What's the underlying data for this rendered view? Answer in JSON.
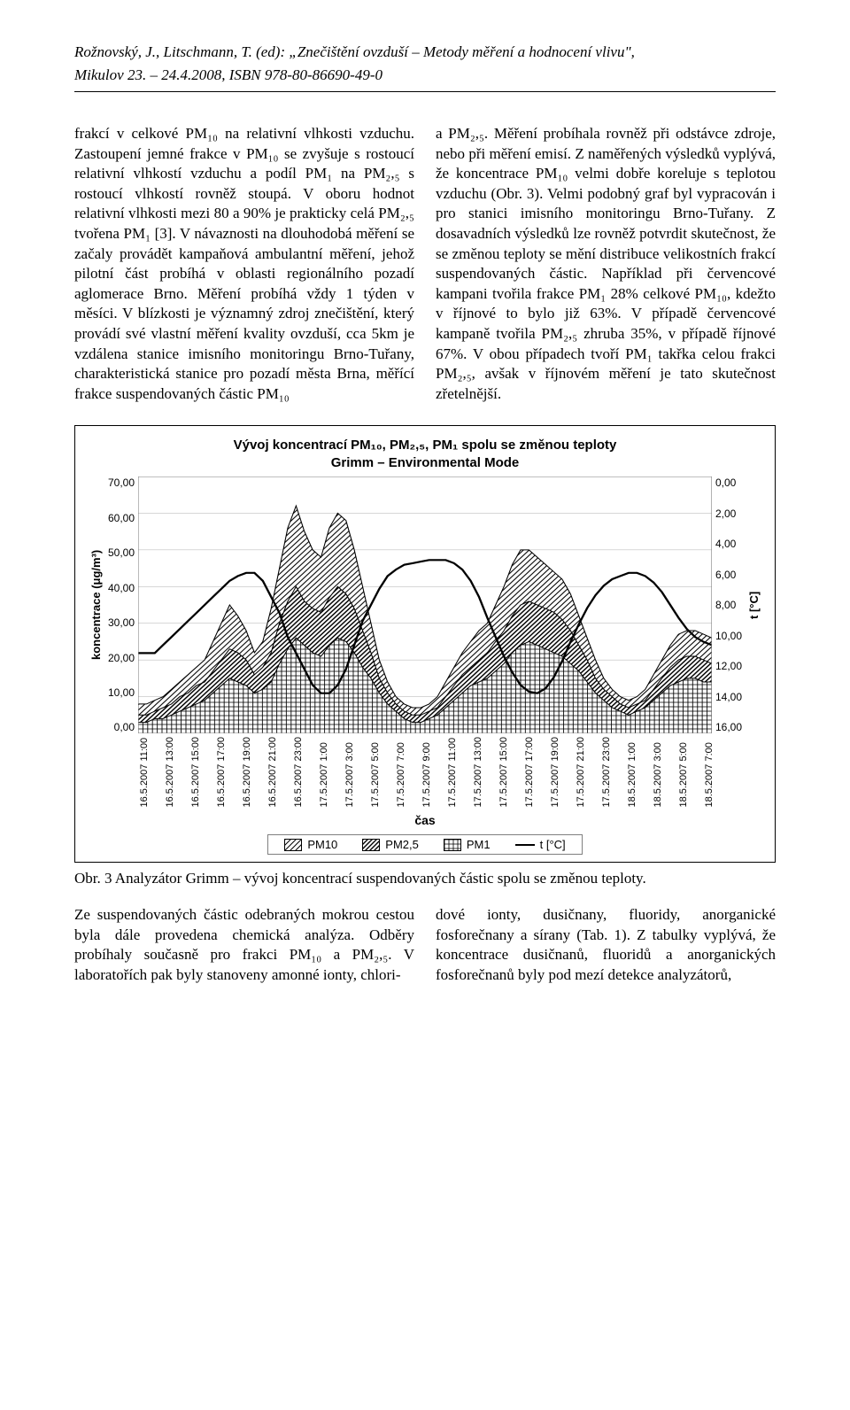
{
  "header": {
    "line1": "Rožnovský, J., Litschmann, T. (ed): „Znečištění ovzduší – Metody měření a hodnocení vlivu\",",
    "line2": "Mikulov 23. – 24.4.2008, ISBN 978-80-86690-49-0"
  },
  "body_left": "frakcí v celkové PM₁₀ na relativní vlhkosti vzduchu. Zastoupení jemné frakce v PM₁₀ se zvyšuje s rostoucí relativní vlhkostí vzduchu a podíl PM₁ na PM₂,₅ s rostoucí vlhkostí rovněž stoupá. V oboru hodnot relativní vlhkosti mezi 80 a 90% je prakticky celá PM₂,₅ tvořena PM₁ [3]. V návaznosti na dlouhodobá měření se začaly provádět kampaňová ambulantní měření, jehož pilotní část probíhá v oblasti regionálního pozadí aglomerace Brno. Měření probíhá vždy 1 týden v měsíci. V blízkosti je významný zdroj znečištění, který provádí své vlastní měření kvality ovzduší, cca 5km je vzdálena stanice imisního monitoringu Brno-Tuřany, charakteristická stanice pro pozadí města Brna, měřící frakce suspendovaných částic PM₁₀",
  "body_right": "a PM₂,₅. Měření probíhala rovněž při odstávce zdroje, nebo při měření emisí. Z naměřených výsledků vyplývá, že koncentrace PM₁₀ velmi dobře koreluje s teplotou vzduchu (Obr. 3). Velmi podobný graf byl vypracován i pro stanici imisního monitoringu Brno-Tuřany. Z dosavadních výsledků lze rovněž potvrdit skutečnost, že se změnou teploty se mění distribuce velikostních frakcí suspendovaných částic. Například při červencové kampani tvořila frakce PM₁ 28% celkové PM₁₀, kdežto v říjnové to bylo již 63%. V případě červencové kampaně tvořila PM₂,₅ zhruba 35%, v případě říjnové 67%. V obou případech tvoří PM₁ takřka celou frakci PM₂,₅, avšak v říjnovém měření je tato skutečnost zřetelnější.",
  "chart": {
    "title_line1": "Vývoj koncentrací PM₁₀, PM₂,₅, PM₁ spolu se změnou teploty",
    "title_line2": "Grimm – Environmental Mode",
    "y_left_label": "koncentrace (μg/m³)",
    "y_right_label": "t [°C]",
    "x_label": "čas",
    "y_left": {
      "min": 0,
      "max": 70,
      "step": 10,
      "ticks": [
        "70,00",
        "60,00",
        "50,00",
        "40,00",
        "30,00",
        "20,00",
        "10,00",
        "0,00"
      ]
    },
    "y_right": {
      "min": 0,
      "max": 16,
      "step": 2,
      "ticks": [
        "0,00",
        "2,00",
        "4,00",
        "6,00",
        "8,00",
        "10,00",
        "12,00",
        "14,00",
        "16,00"
      ],
      "reversed": true
    },
    "x_ticks": [
      "16.5.2007 11:00",
      "16.5.2007 13:00",
      "16.5.2007 15:00",
      "16.5.2007 17:00",
      "16.5.2007 19:00",
      "16.5.2007 21:00",
      "16.5.2007 23:00",
      "17.5.2007 1:00",
      "17.5.2007 3:00",
      "17.5.2007 5:00",
      "17.5.2007 7:00",
      "17.5.2007 9:00",
      "17.5.2007 11:00",
      "17.5.2007 13:00",
      "17.5.2007 15:00",
      "17.5.2007 17:00",
      "17.5.2007 19:00",
      "17.5.2007 21:00",
      "17.5.2007 23:00",
      "18.5.2007 1:00",
      "18.5.2007 3:00",
      "18.5.2007 5:00",
      "18.5.2007 7:00"
    ],
    "legend": [
      {
        "label": "PM10",
        "swatch": "diag1"
      },
      {
        "label": "PM2,5",
        "swatch": "diag2"
      },
      {
        "label": "PM1",
        "swatch": "grid"
      },
      {
        "label": "t [°C]",
        "swatch": "line"
      }
    ],
    "background_color": "#ffffff",
    "gridline_color": "#bfbfbf",
    "series_border": "#000000",
    "temp_line_color": "#000000",
    "temp_line_width": 2.2,
    "series": {
      "pm10": [
        8,
        8,
        9,
        10,
        12,
        14,
        16,
        18,
        20,
        25,
        30,
        35,
        32,
        28,
        22,
        25,
        34,
        45,
        56,
        62,
        55,
        50,
        48,
        56,
        60,
        58,
        50,
        40,
        30,
        20,
        14,
        10,
        8,
        7,
        7,
        8,
        10,
        14,
        18,
        22,
        25,
        28,
        30,
        35,
        40,
        46,
        50,
        50,
        48,
        46,
        44,
        42,
        38,
        32,
        26,
        20,
        15,
        12,
        10,
        9,
        10,
        12,
        16,
        20,
        24,
        27,
        28,
        28,
        27,
        26
      ],
      "pm25": [
        5,
        5,
        6,
        7,
        8,
        10,
        11,
        13,
        14,
        17,
        20,
        23,
        22,
        20,
        16,
        18,
        22,
        30,
        36,
        40,
        36,
        34,
        33,
        37,
        40,
        38,
        34,
        28,
        22,
        15,
        11,
        8,
        6,
        5,
        5,
        6,
        7,
        10,
        13,
        16,
        18,
        20,
        22,
        25,
        28,
        32,
        35,
        36,
        35,
        34,
        33,
        31,
        28,
        24,
        20,
        15,
        12,
        10,
        8,
        7,
        8,
        9,
        12,
        15,
        18,
        20,
        21,
        21,
        20,
        19
      ],
      "pm1": [
        3,
        3,
        4,
        4,
        5,
        6,
        7,
        8,
        9,
        11,
        13,
        15,
        14,
        13,
        11,
        12,
        14,
        19,
        23,
        26,
        24,
        22,
        21,
        24,
        26,
        25,
        22,
        18,
        15,
        11,
        8,
        6,
        4,
        3,
        3,
        4,
        5,
        7,
        9,
        11,
        13,
        14,
        15,
        17,
        19,
        22,
        24,
        25,
        24,
        23,
        22,
        21,
        19,
        17,
        14,
        11,
        9,
        7,
        6,
        5,
        6,
        7,
        9,
        11,
        13,
        14,
        15,
        15,
        14,
        14
      ],
      "temp": [
        11,
        11,
        11,
        10.5,
        10,
        9.5,
        9,
        8.5,
        8,
        7.5,
        7,
        6.5,
        6.2,
        6,
        6,
        6.5,
        7.5,
        8.5,
        10,
        11,
        12,
        13,
        13.5,
        13.5,
        13,
        12,
        10.5,
        9,
        8,
        7,
        6.2,
        5.8,
        5.5,
        5.4,
        5.3,
        5.2,
        5.2,
        5.2,
        5.4,
        5.8,
        6.5,
        7.5,
        8.8,
        10,
        11.2,
        12.2,
        13,
        13.4,
        13.5,
        13.2,
        12.5,
        11.5,
        10.3,
        9.2,
        8.2,
        7.4,
        6.8,
        6.4,
        6.2,
        6,
        6,
        6.2,
        6.6,
        7.2,
        8,
        8.8,
        9.5,
        10,
        10.3,
        10.5
      ]
    }
  },
  "caption": "Obr. 3 Analyzátor Grimm – vývoj koncentrací suspendovaných částic spolu se změnou teploty.",
  "bottom_left": "Ze suspendovaných částic odebraných mokrou cestou byla dále provedena chemická analýza. Odběry probíhaly současně pro frakci PM₁₀ a PM₂,₅. V laboratořích pak byly stanoveny amonné ionty, chlori-",
  "bottom_right": "dové ionty, dusičnany, fluoridy, anorganické fosforečnany a sírany (Tab. 1). Z tabulky vyplývá, že koncentrace dusičnanů, fluoridů a anorganických fosforečnanů byly pod mezí detekce analyzátorů,"
}
